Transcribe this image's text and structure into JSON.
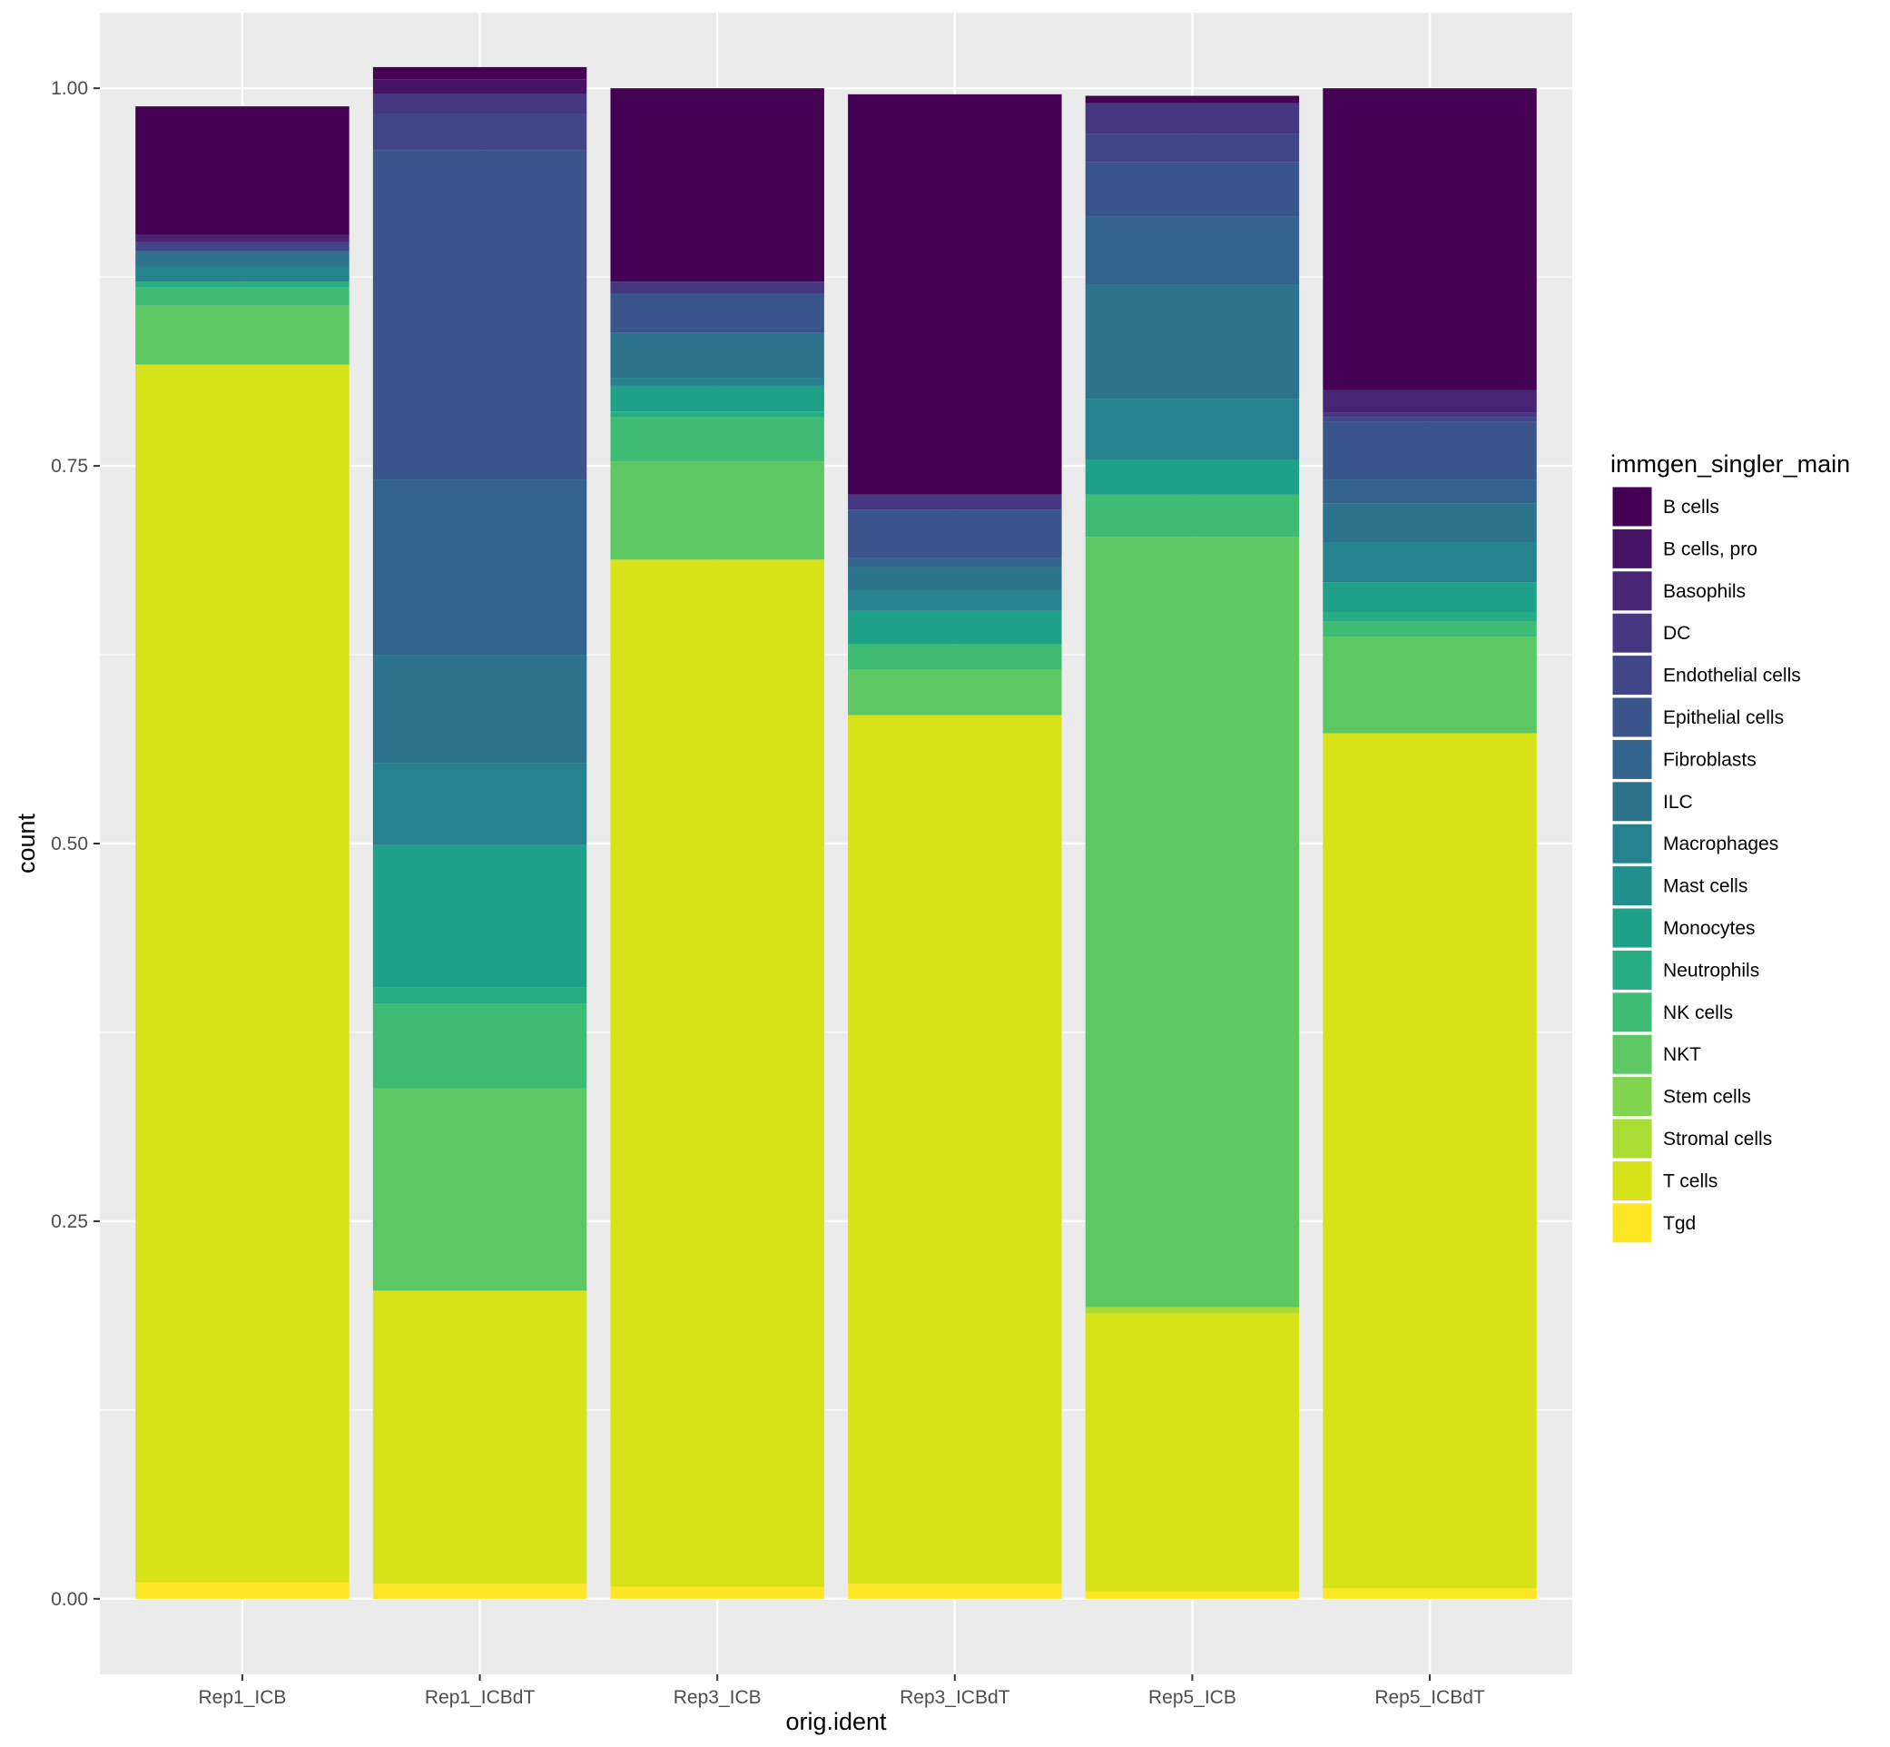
{
  "chart_data": {
    "type": "bar",
    "stacked": true,
    "normalized": true,
    "title": "",
    "xlabel": "orig.ident",
    "ylabel": "count",
    "ylim": [
      -0.05,
      1.05
    ],
    "y_ticks": [
      0.0,
      0.25,
      0.5,
      0.75,
      1.0
    ],
    "y_tick_labels": [
      "0.00",
      "0.25",
      "0.50",
      "0.75",
      "1.00"
    ],
    "grid": true,
    "legend_position": "right",
    "legend_title": "immgen_singler_main",
    "categories": [
      "Rep1_ICB",
      "Rep1_ICBdT",
      "Rep3_ICB",
      "Rep3_ICBdT",
      "Rep5_ICB",
      "Rep5_ICBdT"
    ],
    "series": [
      {
        "name": "B cells",
        "color": "#440154",
        "values": [
          0.085,
          0.008,
          0.128,
          0.265,
          0.005,
          0.2
        ]
      },
      {
        "name": "B cells, pro",
        "color": "#471365",
        "values": [
          0.0,
          0.01,
          0.0,
          0.0,
          0.0,
          0.0
        ]
      },
      {
        "name": "Basophils",
        "color": "#482475",
        "values": [
          0.005,
          0.0,
          0.0,
          0.0,
          0.0,
          0.015
        ]
      },
      {
        "name": "DC",
        "color": "#453781",
        "values": [
          0.0,
          0.013,
          0.008,
          0.01,
          0.02,
          0.003
        ]
      },
      {
        "name": "Endothelial cells",
        "color": "#404688",
        "values": [
          0.006,
          0.024,
          0.0,
          0.0,
          0.019,
          0.003
        ]
      },
      {
        "name": "Epithelial cells",
        "color": "#39558C",
        "values": [
          0.0,
          0.218,
          0.026,
          0.032,
          0.036,
          0.038
        ]
      },
      {
        "name": "Fibroblasts",
        "color": "#32648E",
        "values": [
          0.0,
          0.116,
          0.0,
          0.006,
          0.045,
          0.016
        ]
      },
      {
        "name": "ILC",
        "color": "#2C738E",
        "values": [
          0.01,
          0.072,
          0.03,
          0.015,
          0.076,
          0.026
        ]
      },
      {
        "name": "Macrophages",
        "color": "#26828E",
        "values": [
          0.01,
          0.054,
          0.005,
          0.014,
          0.04,
          0.026
        ]
      },
      {
        "name": "Mast cells",
        "color": "#21908D",
        "values": [
          0.0,
          0.0,
          0.0,
          0.0,
          0.0,
          0.0
        ]
      },
      {
        "name": "Monocytes",
        "color": "#1FA088",
        "values": [
          0.0,
          0.094,
          0.017,
          0.022,
          0.023,
          0.02
        ]
      },
      {
        "name": "Neutrophils",
        "color": "#27AD81",
        "values": [
          0.004,
          0.011,
          0.004,
          0.0,
          0.0,
          0.006
        ]
      },
      {
        "name": "NK cells",
        "color": "#3EBC74",
        "values": [
          0.012,
          0.056,
          0.029,
          0.017,
          0.028,
          0.01
        ]
      },
      {
        "name": "NKT",
        "color": "#5DC863",
        "values": [
          0.039,
          0.134,
          0.065,
          0.03,
          0.51,
          0.064
        ]
      },
      {
        "name": "Stem cells",
        "color": "#82D34E",
        "values": [
          0.0,
          0.0,
          0.0,
          0.0,
          0.0,
          0.0
        ]
      },
      {
        "name": "Stromal cells",
        "color": "#AADC32",
        "values": [
          0.0,
          0.0,
          0.0,
          0.0,
          0.004,
          0.0
        ]
      },
      {
        "name": "T cells",
        "color": "#D8E219",
        "values": [
          0.806,
          0.194,
          0.68,
          0.575,
          0.184,
          0.566
        ]
      },
      {
        "name": "Tgd",
        "color": "#FDE725",
        "values": [
          0.011,
          0.01,
          0.008,
          0.01,
          0.005,
          0.007
        ]
      }
    ]
  }
}
